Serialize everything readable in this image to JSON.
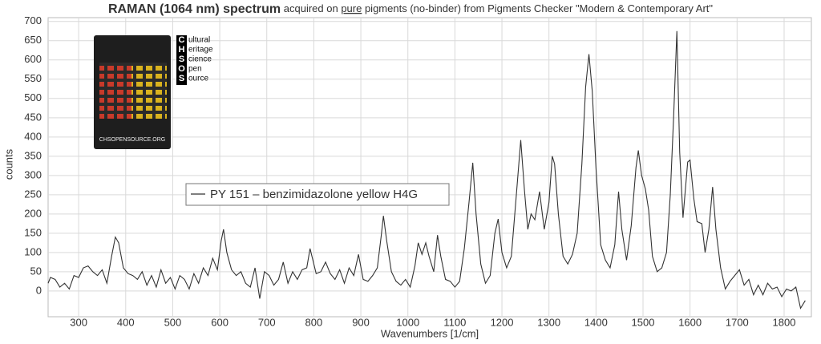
{
  "chart_data": {
    "type": "line",
    "title": "RAMAN (1064 nm) spectrum",
    "subtitle_parts": [
      "acquired on ",
      "pure",
      " pigments (no-binder) from Pigments Checker \"Modern & Contemporary Art\""
    ],
    "xlabel": "Wavenumbers [1/cm]",
    "ylabel": "counts",
    "xlim": [
      235,
      1858
    ],
    "ylim": [
      -67,
      710
    ],
    "xticks": [
      300,
      400,
      500,
      600,
      700,
      800,
      900,
      1000,
      1100,
      1200,
      1300,
      1400,
      1500,
      1600,
      1700,
      1800
    ],
    "yticks": [
      0,
      50,
      100,
      150,
      200,
      250,
      300,
      350,
      400,
      450,
      500,
      550,
      600,
      650,
      700
    ],
    "grid": true,
    "legend": "upper-left",
    "inset": {
      "caption": "CHSOPENSOURCE.ORG",
      "logo_letters": [
        "C",
        "H",
        "S",
        "O",
        "S"
      ],
      "logo_words": [
        "ultural",
        "eritage",
        "cience",
        "pen",
        "ource"
      ]
    },
    "x": [
      235,
      240,
      250,
      260,
      270,
      280,
      290,
      300,
      310,
      320,
      330,
      340,
      350,
      360,
      370,
      378,
      385,
      395,
      405,
      415,
      425,
      435,
      445,
      455,
      465,
      475,
      485,
      495,
      505,
      515,
      525,
      535,
      545,
      555,
      565,
      575,
      585,
      595,
      603,
      608,
      615,
      625,
      635,
      645,
      655,
      665,
      675,
      685,
      695,
      705,
      715,
      725,
      735,
      745,
      755,
      765,
      775,
      785,
      792,
      798,
      805,
      815,
      825,
      835,
      845,
      855,
      865,
      875,
      885,
      895,
      905,
      915,
      925,
      935,
      943,
      948,
      955,
      965,
      975,
      985,
      995,
      1005,
      1015,
      1022,
      1030,
      1038,
      1045,
      1055,
      1063,
      1070,
      1080,
      1090,
      1100,
      1110,
      1120,
      1130,
      1138,
      1145,
      1155,
      1165,
      1175,
      1185,
      1192,
      1200,
      1210,
      1220,
      1230,
      1240,
      1248,
      1255,
      1262,
      1270,
      1280,
      1290,
      1300,
      1307,
      1312,
      1320,
      1330,
      1340,
      1350,
      1360,
      1370,
      1378,
      1385,
      1392,
      1400,
      1410,
      1420,
      1430,
      1440,
      1448,
      1455,
      1465,
      1475,
      1485,
      1490,
      1497,
      1505,
      1512,
      1520,
      1530,
      1540,
      1550,
      1558,
      1565,
      1572,
      1578,
      1585,
      1595,
      1600,
      1608,
      1615,
      1625,
      1632,
      1640,
      1648,
      1655,
      1665,
      1675,
      1685,
      1695,
      1705,
      1715,
      1725,
      1735,
      1745,
      1755,
      1765,
      1775,
      1785,
      1795,
      1805,
      1815,
      1825,
      1835,
      1845
    ],
    "series": [
      {
        "name": "PY 151 – benzimidazolone yellow H4G",
        "color": "#333333",
        "values": [
          20,
          35,
          30,
          10,
          20,
          5,
          40,
          35,
          60,
          65,
          50,
          40,
          55,
          20,
          90,
          140,
          125,
          60,
          45,
          40,
          30,
          50,
          15,
          40,
          10,
          55,
          20,
          35,
          5,
          40,
          30,
          5,
          45,
          20,
          60,
          40,
          85,
          55,
          130,
          160,
          100,
          55,
          40,
          50,
          20,
          10,
          60,
          -20,
          50,
          40,
          15,
          30,
          75,
          20,
          50,
          30,
          55,
          60,
          110,
          80,
          45,
          50,
          75,
          45,
          30,
          55,
          20,
          60,
          40,
          95,
          30,
          25,
          40,
          60,
          140,
          195,
          130,
          50,
          25,
          15,
          30,
          10,
          65,
          125,
          95,
          125,
          90,
          50,
          145,
          90,
          30,
          25,
          10,
          25,
          110,
          230,
          333,
          200,
          70,
          20,
          40,
          150,
          187,
          100,
          60,
          90,
          240,
          392,
          260,
          160,
          200,
          185,
          258,
          160,
          230,
          350,
          330,
          200,
          90,
          70,
          95,
          150,
          330,
          530,
          615,
          520,
          320,
          120,
          80,
          60,
          120,
          258,
          160,
          80,
          170,
          320,
          365,
          300,
          265,
          210,
          90,
          50,
          60,
          100,
          250,
          450,
          675,
          360,
          190,
          335,
          340,
          240,
          180,
          175,
          100,
          160,
          270,
          160,
          60,
          5,
          25,
          40,
          55,
          15,
          30,
          -10,
          15,
          -10,
          20,
          5,
          10,
          -15,
          5,
          0,
          10,
          -45,
          -25
        ]
      }
    ]
  }
}
